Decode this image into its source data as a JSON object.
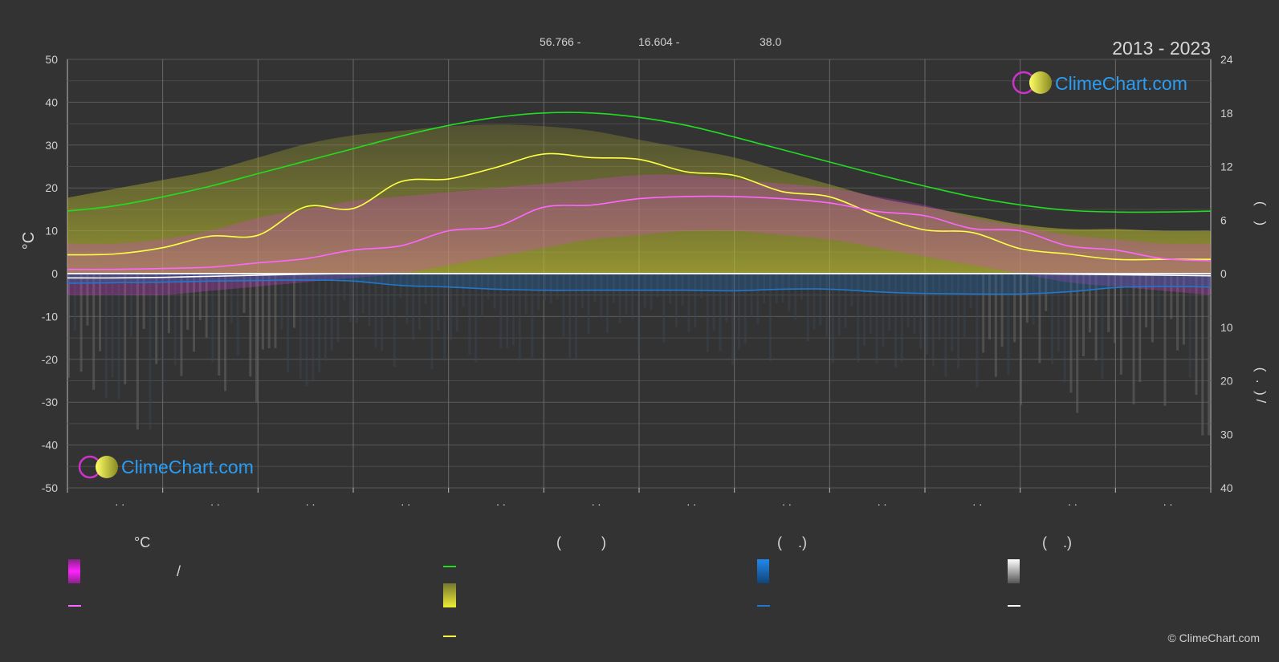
{
  "header": {
    "coord_lat": "56.766 -",
    "coord_lon": "16.604 -",
    "elevation": "38.0",
    "period": "2013 - 2023"
  },
  "logo": {
    "text": "ClimeChart.com"
  },
  "copyright": "© ClimeChart.com",
  "legend": {
    "temp_header": "°C",
    "sun_header": "(          )",
    "rain_header": "(    .)",
    "snow_header": "(    .)",
    "temp_range_sep": "/"
  },
  "colors": {
    "background": "#333333",
    "daylight": "#22dd22",
    "sunshine": "#ffff44",
    "sunshine_band": "#c8c832",
    "temp_mean": "#ff66ff",
    "temp_band": "#e040e0",
    "rain": "#2277cc",
    "snow": "#ffffff",
    "logo_text": "#2a9df4"
  },
  "chart_data": {
    "type": "line",
    "x_tick_labels": [
      ". .",
      ". .",
      ". .",
      ". .",
      ". .",
      ". .",
      ". .",
      ". .",
      ". .",
      ". .",
      ". .",
      ". ."
    ],
    "y_left": {
      "label": "°C",
      "ticks": [
        50,
        40,
        30,
        20,
        10,
        0,
        -10,
        -20,
        -30,
        -40,
        -50
      ],
      "ylim": [
        -50,
        50
      ]
    },
    "y_right_top": {
      "ticks": [
        24,
        18,
        12,
        6,
        0
      ],
      "ylim": [
        0,
        24
      ],
      "label": "(    )"
    },
    "y_right_bottom": {
      "ticks": [
        0,
        10,
        20,
        30,
        40
      ],
      "ylim": [
        0,
        40
      ],
      "label": "(  .  ) /"
    },
    "x": [
      0,
      0.5,
      1,
      1.5,
      2,
      2.5,
      3,
      3.5,
      4,
      4.5,
      5,
      5.5,
      6,
      6.5,
      7,
      7.5,
      8,
      8.5,
      9,
      9.5,
      10,
      10.5,
      11,
      11.5,
      12
    ],
    "series": [
      {
        "key": "daylight",
        "axis": "right_top",
        "values": [
          7.0,
          7.6,
          8.6,
          9.8,
          11.2,
          12.6,
          14.0,
          15.4,
          16.6,
          17.5,
          18.0,
          18.0,
          17.5,
          16.6,
          15.3,
          13.9,
          12.5,
          11.1,
          9.8,
          8.6,
          7.7,
          7.1,
          6.9,
          6.9,
          7.0
        ]
      },
      {
        "key": "sunshine",
        "axis": "right_top",
        "values": [
          2.1,
          2.2,
          2.9,
          4.2,
          4.3,
          7.5,
          7.3,
          10.3,
          10.6,
          11.9,
          13.4,
          13.0,
          12.8,
          11.4,
          11.0,
          9.2,
          8.6,
          6.5,
          4.9,
          4.6,
          2.8,
          2.2,
          1.6,
          1.6,
          1.6
        ]
      },
      {
        "key": "temp_mean",
        "axis": "left",
        "values": [
          1.0,
          1.0,
          1.2,
          1.5,
          2.5,
          3.5,
          5.5,
          6.5,
          10.0,
          11.0,
          15.5,
          16.0,
          17.5,
          18.0,
          18.0,
          17.5,
          16.5,
          14.5,
          13.5,
          10.5,
          10.0,
          6.5,
          5.5,
          3.5,
          3.0
        ]
      },
      {
        "key": "rain",
        "axis": "right_bottom",
        "values": [
          1.8,
          1.7,
          1.6,
          1.4,
          1.3,
          1.2,
          1.4,
          2.2,
          2.5,
          2.9,
          3.1,
          3.1,
          3.1,
          3.1,
          3.2,
          2.9,
          2.9,
          3.4,
          3.7,
          3.8,
          3.8,
          3.4,
          2.6,
          2.4,
          2.5
        ]
      },
      {
        "key": "snow",
        "axis": "right_bottom",
        "values": [
          0.8,
          0.8,
          0.7,
          0.5,
          0.3,
          0.1,
          0.0,
          0.0,
          0.0,
          0.0,
          0.0,
          0.0,
          0.0,
          0.0,
          0.0,
          0.0,
          0.0,
          0.0,
          0.0,
          0.0,
          0.0,
          0.1,
          0.2,
          0.3,
          0.4
        ]
      }
    ],
    "sunshine_band_top": [
      8.5,
      9.5,
      10.5,
      11.5,
      13.0,
      14.5,
      15.5,
      16.0,
      16.5,
      16.7,
      16.5,
      16.0,
      15.0,
      14.0,
      13.0,
      11.5,
      10.0,
      8.5,
      7.5,
      6.5,
      5.5,
      5.0,
      5.0,
      4.8,
      4.8
    ],
    "temp_band_low": [
      -5,
      -5,
      -5,
      -4,
      -3,
      -2,
      -1,
      0,
      2,
      4,
      6,
      8,
      9,
      10,
      10,
      9,
      8,
      6,
      4,
      2,
      0,
      -2,
      -3,
      -4,
      -5
    ],
    "temp_band_high": [
      7,
      7,
      8,
      10,
      13,
      15,
      17,
      18,
      19,
      20,
      21,
      22,
      23,
      23,
      22,
      21,
      20,
      18,
      16,
      13,
      11,
      9,
      8,
      7,
      7
    ],
    "grid": true
  }
}
